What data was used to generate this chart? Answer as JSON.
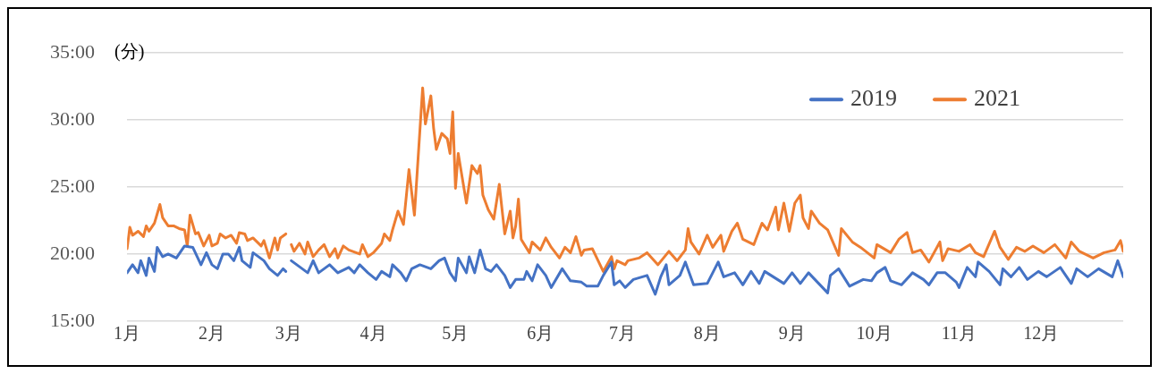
{
  "chart_data": {
    "type": "line",
    "ylabel": "(分)",
    "xlim": [
      "--01-01",
      "--12-31"
    ],
    "xticks": [
      {
        "value": "--01-01",
        "label": "1月"
      },
      {
        "value": "--02-01",
        "label": "2月"
      },
      {
        "value": "--03-01",
        "label": "3月"
      },
      {
        "value": "--04-01",
        "label": "4月"
      },
      {
        "value": "--05-01",
        "label": "5月"
      },
      {
        "value": "--06-01",
        "label": "6月"
      },
      {
        "value": "--07-01",
        "label": "7月"
      },
      {
        "value": "--08-01",
        "label": "8月"
      },
      {
        "value": "--09-01",
        "label": "9月"
      },
      {
        "value": "--10-01",
        "label": "10月"
      },
      {
        "value": "--11-01",
        "label": "11月"
      },
      {
        "value": "--12-01",
        "label": "12月"
      }
    ],
    "ylim": [
      15,
      35
    ],
    "yticks": [
      {
        "value": 15,
        "label": "15:00"
      },
      {
        "value": 20,
        "label": "20:00"
      },
      {
        "value": 25,
        "label": "25:00"
      },
      {
        "value": 30,
        "label": "30:00"
      },
      {
        "value": 35,
        "label": "35:00"
      }
    ],
    "grid": "y",
    "legend": "top right",
    "marker": "none",
    "line_style": "solid",
    "series": [
      {
        "name": "2019",
        "color": "#4472c4",
        "x": [
          "--01-01",
          "--01-03",
          "--01-05",
          "--01-06",
          "--01-08",
          "--01-09",
          "--01-11",
          "--01-12",
          "--01-14",
          "--01-16",
          "--01-19",
          "--01-22",
          "--01-25",
          "--01-28",
          "--01-30",
          "--02-01",
          "--02-03",
          "--02-05",
          "--02-07",
          "--02-09",
          "--02-11",
          "--02-12",
          "--02-15",
          "--02-16",
          "--02-20",
          "--02-22",
          "--02-25",
          "--02-27",
          "--02-28",
          "--03-01",
          "--03-02",
          "--03-04",
          "--03-08",
          "--03-10",
          "--03-12",
          "--03-16",
          "--03-19",
          "--03-23",
          "--03-25",
          "--03-27",
          "--03-30",
          "--04-02",
          "--04-04",
          "--04-07",
          "--04-08",
          "--04-11",
          "--04-13",
          "--04-15",
          "--04-18",
          "--04-22",
          "--04-25",
          "--04-27",
          "--04-29",
          "--05-01",
          "--05-02",
          "--05-05",
          "--05-06",
          "--05-08",
          "--05-10",
          "--05-12",
          "--05-14",
          "--05-16",
          "--05-19",
          "--05-21",
          "--05-23",
          "--05-26",
          "--05-27",
          "--05-29",
          "--05-31",
          "--06-03",
          "--06-05",
          "--06-09",
          "--06-12",
          "--06-16",
          "--06-18",
          "--06-22",
          "--06-24",
          "--06-27",
          "--06-28",
          "--06-30",
          "--07-02",
          "--07-05",
          "--07-10",
          "--07-13",
          "--07-15",
          "--07-17",
          "--07-18",
          "--07-22",
          "--07-24",
          "--07-27",
          "--08-01",
          "--08-05",
          "--08-07",
          "--08-11",
          "--08-14",
          "--08-17",
          "--08-20",
          "--08-22",
          "--08-29",
          "--09-01",
          "--09-04",
          "--09-07",
          "--09-14",
          "--09-15",
          "--09-18",
          "--09-22",
          "--09-27",
          "--09-30",
          "--10-02",
          "--10-05",
          "--10-07",
          "--10-11",
          "--10-15",
          "--10-19",
          "--10-21",
          "--10-24",
          "--10-27",
          "--10-31",
          "--11-01",
          "--11-04",
          "--11-07",
          "--11-08",
          "--11-12",
          "--11-16",
          "--11-17",
          "--11-20",
          "--11-23",
          "--11-26",
          "--11-30",
          "--12-03",
          "--12-08",
          "--12-12",
          "--12-14",
          "--12-18",
          "--12-22",
          "--12-27",
          "--12-29",
          "--12-31"
        ],
        "values": [
          18.6,
          19.2,
          18.6,
          19.5,
          18.4,
          19.7,
          18.7,
          20.5,
          19.8,
          20.0,
          19.7,
          20.6,
          20.5,
          19.2,
          20.1,
          19.2,
          18.9,
          20.0,
          20.0,
          19.5,
          20.5,
          19.5,
          19.0,
          20.1,
          19.5,
          18.9,
          18.4,
          18.9,
          18.7,
          null,
          19.5,
          19.2,
          18.6,
          19.5,
          18.6,
          19.2,
          18.6,
          19.0,
          18.6,
          19.2,
          18.6,
          18.1,
          18.7,
          18.3,
          19.2,
          18.6,
          18.0,
          18.9,
          19.2,
          18.9,
          19.5,
          19.7,
          18.6,
          18.0,
          19.7,
          18.6,
          19.8,
          18.6,
          20.3,
          18.9,
          18.7,
          19.2,
          18.4,
          17.5,
          18.1,
          18.1,
          18.7,
          18.0,
          19.2,
          18.4,
          17.5,
          18.9,
          18.0,
          17.9,
          17.6,
          17.6,
          18.4,
          19.4,
          17.7,
          18.0,
          17.5,
          18.1,
          18.4,
          17.0,
          18.3,
          19.2,
          17.7,
          18.4,
          19.4,
          17.7,
          17.8,
          19.4,
          18.3,
          18.6,
          17.7,
          18.7,
          17.8,
          18.7,
          17.8,
          18.6,
          17.8,
          18.6,
          17.1,
          18.4,
          18.9,
          17.6,
          18.1,
          18.0,
          18.6,
          19.0,
          18.0,
          17.7,
          18.6,
          18.1,
          17.7,
          18.6,
          18.6,
          17.9,
          17.5,
          19.0,
          18.3,
          19.4,
          18.7,
          17.7,
          18.9,
          18.3,
          19.0,
          18.1,
          18.7,
          18.3,
          19.0,
          17.8,
          18.9,
          18.3,
          18.9,
          18.3,
          19.5,
          18.3
        ]
      },
      {
        "name": "2021",
        "color": "#ed7d31",
        "x": [
          "--01-01",
          "--01-02",
          "--01-03",
          "--01-05",
          "--01-07",
          "--01-08",
          "--01-09",
          "--01-11",
          "--01-12",
          "--01-13",
          "--01-14",
          "--01-16",
          "--01-18",
          "--01-20",
          "--01-22",
          "--01-23",
          "--01-24",
          "--01-26",
          "--01-27",
          "--01-29",
          "--01-31",
          "--02-01",
          "--02-03",
          "--02-04",
          "--02-06",
          "--02-08",
          "--02-10",
          "--02-11",
          "--02-13",
          "--02-14",
          "--02-16",
          "--02-19",
          "--02-20",
          "--02-22",
          "--02-24",
          "--02-25",
          "--02-26",
          "--02-28",
          "--03-01",
          "--03-02",
          "--03-03",
          "--03-05",
          "--03-07",
          "--03-08",
          "--03-10",
          "--03-12",
          "--03-14",
          "--03-16",
          "--03-18",
          "--03-19",
          "--03-21",
          "--03-23",
          "--03-27",
          "--03-28",
          "--03-30",
          "--04-01",
          "--04-04",
          "--04-05",
          "--04-07",
          "--04-08",
          "--04-10",
          "--04-12",
          "--04-14",
          "--04-16",
          "--04-19",
          "--04-20",
          "--04-22",
          "--04-23",
          "--04-24",
          "--04-26",
          "--04-28",
          "--04-29",
          "--04-30",
          "--05-01",
          "--05-02",
          "--05-05",
          "--05-07",
          "--05-09",
          "--05-10",
          "--05-11",
          "--05-13",
          "--05-15",
          "--05-17",
          "--05-19",
          "--05-21",
          "--05-22",
          "--05-23",
          "--05-24",
          "--05-25",
          "--05-28",
          "--05-29",
          "--06-01",
          "--06-03",
          "--06-05",
          "--06-08",
          "--06-10",
          "--06-12",
          "--06-14",
          "--06-16",
          "--06-17",
          "--06-20",
          "--06-24",
          "--06-27",
          "--06-28",
          "--06-29",
          "--07-02",
          "--07-03",
          "--07-07",
          "--07-10",
          "--07-14",
          "--07-18",
          "--07-21",
          "--07-24",
          "--07-25",
          "--07-26",
          "--07-29",
          "--08-01",
          "--08-03",
          "--08-06",
          "--08-07",
          "--08-10",
          "--08-12",
          "--08-14",
          "--08-18",
          "--08-21",
          "--08-23",
          "--08-26",
          "--08-27",
          "--08-29",
          "--08-31",
          "--09-02",
          "--09-04",
          "--09-05",
          "--09-07",
          "--09-08",
          "--09-11",
          "--09-14",
          "--09-18",
          "--09-19",
          "--09-23",
          "--09-26",
          "--10-01",
          "--10-02",
          "--10-07",
          "--10-10",
          "--10-13",
          "--10-15",
          "--10-18",
          "--10-21",
          "--10-25",
          "--10-26",
          "--10-28",
          "--11-01",
          "--11-05",
          "--11-07",
          "--11-10",
          "--11-14",
          "--11-16",
          "--11-19",
          "--11-22",
          "--11-25",
          "--11-28",
          "--12-02",
          "--12-06",
          "--12-10",
          "--12-12",
          "--12-15",
          "--12-20",
          "--12-24",
          "--12-28",
          "--12-30",
          "--12-31"
        ],
        "values": [
          20.4,
          22.0,
          21.4,
          21.7,
          21.3,
          22.1,
          21.7,
          22.3,
          23.0,
          23.7,
          22.7,
          22.1,
          22.1,
          21.9,
          21.8,
          20.6,
          22.9,
          21.5,
          21.6,
          20.6,
          21.4,
          20.6,
          20.8,
          21.5,
          21.2,
          21.4,
          20.8,
          21.6,
          21.5,
          21.0,
          21.2,
          20.6,
          21.0,
          19.7,
          21.2,
          20.3,
          21.2,
          21.5,
          null,
          20.7,
          20.2,
          20.8,
          20.0,
          20.9,
          19.8,
          20.3,
          20.7,
          19.8,
          20.4,
          19.7,
          20.6,
          20.3,
          20.0,
          20.7,
          19.8,
          20.1,
          20.8,
          21.5,
          21.0,
          21.8,
          23.2,
          22.2,
          26.3,
          22.9,
          32.4,
          29.7,
          31.8,
          29.4,
          27.8,
          29.0,
          28.6,
          27.5,
          30.6,
          24.9,
          27.5,
          23.8,
          26.6,
          26.0,
          26.6,
          24.4,
          23.3,
          22.6,
          25.2,
          21.5,
          23.2,
          21.2,
          22.1,
          24.1,
          21.1,
          20.1,
          20.9,
          20.3,
          21.2,
          20.5,
          19.7,
          20.5,
          20.1,
          21.3,
          19.9,
          20.3,
          20.4,
          18.7,
          19.8,
          18.9,
          19.5,
          19.2,
          19.5,
          19.7,
          20.1,
          19.2,
          20.2,
          19.5,
          20.3,
          21.9,
          20.9,
          20.0,
          21.4,
          20.5,
          21.4,
          20.2,
          21.7,
          22.3,
          21.1,
          20.7,
          22.3,
          21.8,
          23.5,
          21.8,
          23.8,
          21.7,
          23.8,
          24.4,
          22.7,
          21.9,
          23.2,
          22.3,
          21.8,
          19.9,
          21.9,
          20.9,
          20.5,
          19.7,
          20.7,
          20.1,
          21.1,
          21.6,
          20.1,
          20.3,
          19.4,
          20.9,
          19.5,
          20.4,
          20.2,
          20.7,
          20.1,
          19.8,
          21.7,
          20.5,
          19.6,
          20.5,
          20.2,
          20.6,
          20.1,
          20.7,
          19.7,
          20.9,
          20.2,
          19.7,
          20.1,
          20.3,
          21.0,
          20.2
        ]
      }
    ]
  }
}
